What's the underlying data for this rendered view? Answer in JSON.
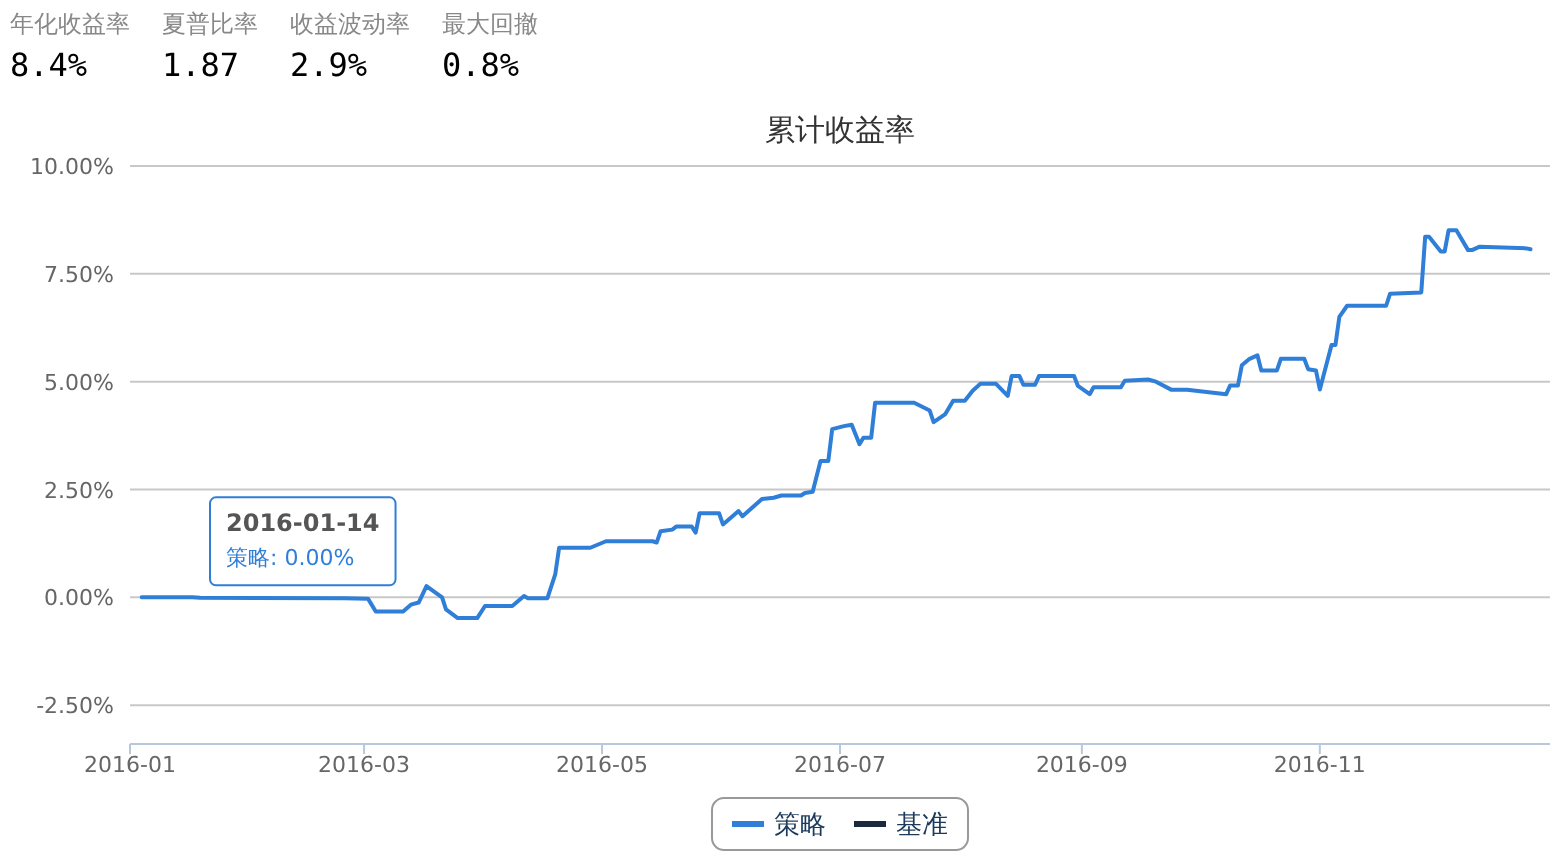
{
  "chart_data": [
    {
      "type": "other",
      "categories": [
        "年化收益率",
        "夏普比率",
        "收益波动率",
        "最大回撤"
      ],
      "value_labels": [
        "8.4%",
        "1.87",
        "2.9%",
        "0.8%"
      ]
    },
    {
      "type": "line",
      "title": "累计收益率",
      "x": [
        "2016-01-04",
        "2016-01-17",
        "2016-01-19",
        "2016-02-25",
        "2016-03-02",
        "2016-03-04",
        "2016-03-11",
        "2016-03-13",
        "2016-03-15",
        "2016-03-17",
        "2016-03-21",
        "2016-03-22",
        "2016-03-25",
        "2016-03-30",
        "2016-04-01",
        "2016-04-08",
        "2016-04-11",
        "2016-04-12",
        "2016-04-17",
        "2016-04-19",
        "2016-04-20",
        "2016-04-28",
        "2016-05-02",
        "2016-05-14",
        "2016-05-15",
        "2016-05-16",
        "2016-05-19",
        "2016-05-20",
        "2016-05-24",
        "2016-05-25",
        "2016-05-26",
        "2016-05-31",
        "2016-06-01",
        "2016-06-05",
        "2016-06-06",
        "2016-06-11",
        "2016-06-14",
        "2016-06-16",
        "2016-06-21",
        "2016-06-22",
        "2016-06-24",
        "2016-06-26",
        "2016-06-28",
        "2016-06-29",
        "2016-07-02",
        "2016-07-04",
        "2016-07-06",
        "2016-07-07",
        "2016-07-09",
        "2016-07-10",
        "2016-07-20",
        "2016-07-24",
        "2016-07-25",
        "2016-07-28",
        "2016-07-30",
        "2016-08-02",
        "2016-08-04",
        "2016-08-06",
        "2016-08-10",
        "2016-08-13",
        "2016-08-14",
        "2016-08-16",
        "2016-08-17",
        "2016-08-20",
        "2016-08-21",
        "2016-08-30",
        "2016-08-31",
        "2016-09-03",
        "2016-09-04",
        "2016-09-11",
        "2016-09-12",
        "2016-09-18",
        "2016-09-20",
        "2016-09-24",
        "2016-09-28",
        "2016-10-08",
        "2016-10-09",
        "2016-10-11",
        "2016-10-12",
        "2016-10-14",
        "2016-10-16",
        "2016-10-17",
        "2016-10-21",
        "2016-10-22",
        "2016-10-28",
        "2016-10-29",
        "2016-10-31",
        "2016-11-01",
        "2016-11-04",
        "2016-11-05",
        "2016-11-06",
        "2016-11-08",
        "2016-11-18",
        "2016-11-19",
        "2016-11-27",
        "2016-11-28",
        "2016-11-29",
        "2016-12-02",
        "2016-12-03",
        "2016-12-04",
        "2016-12-06",
        "2016-12-09",
        "2016-12-10",
        "2016-12-12",
        "2016-12-24",
        "2016-12-25"
      ],
      "series": [
        {
          "name": "策略",
          "color": "#2f7ed8",
          "values": [
            0.0,
            0.0,
            -0.01,
            -0.02,
            -0.03,
            -0.33,
            -0.33,
            -0.17,
            -0.12,
            0.26,
            0.0,
            -0.28,
            -0.48,
            -0.48,
            -0.2,
            -0.2,
            0.03,
            -0.02,
            -0.02,
            0.53,
            1.15,
            1.15,
            1.3,
            1.3,
            1.27,
            1.53,
            1.57,
            1.64,
            1.64,
            1.5,
            1.95,
            1.95,
            1.69,
            2.0,
            1.88,
            2.28,
            2.31,
            2.36,
            2.36,
            2.42,
            2.45,
            3.16,
            3.16,
            3.9,
            3.97,
            4.0,
            3.55,
            3.7,
            3.7,
            4.51,
            4.51,
            4.33,
            4.06,
            4.25,
            4.56,
            4.56,
            4.79,
            4.95,
            4.95,
            4.67,
            5.13,
            5.13,
            4.93,
            4.93,
            5.13,
            5.13,
            4.9,
            4.71,
            4.87,
            4.87,
            5.02,
            5.05,
            5.0,
            4.81,
            4.81,
            4.71,
            4.91,
            4.91,
            5.38,
            5.53,
            5.61,
            5.26,
            5.26,
            5.53,
            5.53,
            5.29,
            5.26,
            4.82,
            5.85,
            5.85,
            6.5,
            6.76,
            6.76,
            7.04,
            7.07,
            8.36,
            8.36,
            8.02,
            8.02,
            8.51,
            8.51,
            8.05,
            8.05,
            8.13,
            8.09,
            8.07
          ]
        },
        {
          "name": "基准",
          "color": "#1b2a3f",
          "values": [
            null,
            null,
            null,
            null,
            null,
            null,
            null,
            null,
            null,
            null,
            null,
            null,
            null,
            null,
            null,
            null,
            null,
            null,
            null,
            null,
            null,
            null,
            null,
            null,
            null,
            null,
            null,
            null,
            null,
            null,
            null,
            null,
            null,
            null,
            null,
            null,
            null,
            null,
            null,
            null,
            null,
            null,
            null,
            null,
            null,
            null,
            null,
            null,
            null,
            null,
            null,
            null,
            null,
            null,
            null,
            null,
            null,
            null,
            null,
            null,
            null,
            null,
            null,
            null,
            null,
            null,
            null,
            null,
            null,
            null,
            null,
            null,
            null,
            null,
            null,
            null,
            null,
            null,
            null,
            null,
            null,
            null,
            null,
            null,
            null,
            null,
            null,
            null,
            null,
            null,
            null,
            null,
            null,
            null,
            null,
            null,
            null,
            null,
            null,
            null,
            null,
            null,
            null,
            null,
            null,
            null
          ]
        }
      ],
      "xlim": [
        "2016-01-01",
        "2016-12-30"
      ],
      "xticks": [
        {
          "value": "2016-01-01",
          "label": "2016-01"
        },
        {
          "value": "2016-03-01",
          "label": "2016-03"
        },
        {
          "value": "2016-05-01",
          "label": "2016-05"
        },
        {
          "value": "2016-07-01",
          "label": "2016-07"
        },
        {
          "value": "2016-09-01",
          "label": "2016-09"
        },
        {
          "value": "2016-11-01",
          "label": "2016-11"
        }
      ],
      "ylim": [
        -3.4,
        10
      ],
      "yticks": [
        {
          "value": -2.5,
          "label": "-2.50%"
        },
        {
          "value": 0,
          "label": "0.00%"
        },
        {
          "value": 2.5,
          "label": "2.50%"
        },
        {
          "value": 5,
          "label": "5.00%"
        },
        {
          "value": 7.5,
          "label": "7.50%"
        },
        {
          "value": 10,
          "label": "10.00%"
        }
      ],
      "grid": "y",
      "legend": "bottom",
      "line_style": "solid",
      "annotations": [
        "2016-01-14",
        "策略: 0.00%"
      ]
    }
  ]
}
